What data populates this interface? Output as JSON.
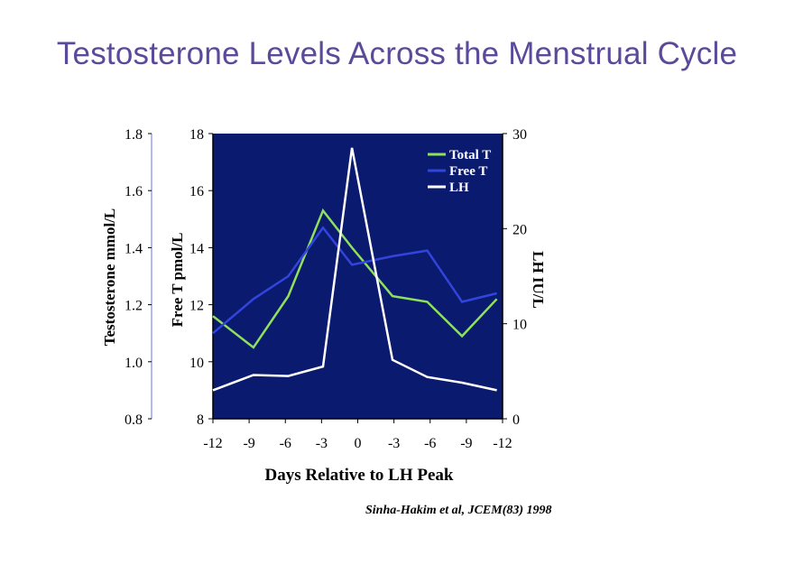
{
  "slide": {
    "title": "Testosterone Levels Across the Menstrual Cycle",
    "citation": "Sinha-Hakim et al, JCEM(83) 1998"
  },
  "chart_data": {
    "type": "line",
    "xlabel": "Days Relative to LH Peak",
    "x_tick_labels": [
      "-12",
      "-9",
      "-6",
      "-3",
      "0",
      "-3",
      "-6",
      "-9",
      "-12"
    ],
    "plot_background": "#0a1a6e",
    "axes": {
      "left_outer": {
        "label": "Testosterone mmol/L",
        "ylim": [
          0.8,
          1.8
        ],
        "ticks": [
          "0.8",
          "1.0",
          "1.2",
          "1.4",
          "1.6",
          "1.8"
        ]
      },
      "left_inner": {
        "label": "Free T pmol/L",
        "ylim": [
          8,
          18
        ],
        "ticks": [
          "8",
          "10",
          "12",
          "14",
          "16",
          "18"
        ]
      },
      "right": {
        "label": "LH IU/L",
        "ylim": [
          0,
          30
        ],
        "ticks": [
          "0",
          "10",
          "20",
          "30"
        ]
      }
    },
    "legend": {
      "position": "top-right",
      "entries": [
        "Total T",
        "Free T",
        "LH"
      ]
    },
    "series": [
      {
        "name": "Total T",
        "axis": "left_outer",
        "color": "#8fe05c",
        "x": [
          -12.5,
          -9,
          -6,
          -3,
          -0.5,
          3,
          6,
          9,
          12
        ],
        "values": [
          1.16,
          1.05,
          1.23,
          1.53,
          1.4,
          1.23,
          1.21,
          1.09,
          1.22
        ]
      },
      {
        "name": "Free T",
        "axis": "left_inner",
        "color": "#3344dd",
        "x": [
          -12.5,
          -9,
          -6,
          -3,
          -0.5,
          3,
          6,
          9,
          12
        ],
        "values": [
          11.0,
          12.2,
          13.0,
          14.7,
          13.4,
          13.7,
          13.9,
          12.1,
          12.4
        ]
      },
      {
        "name": "LH",
        "axis": "right",
        "color": "#ffffff",
        "x": [
          -12.5,
          -9,
          -6,
          -3,
          -0.5,
          3,
          6,
          9,
          12
        ],
        "values": [
          3.0,
          4.6,
          4.5,
          5.5,
          28.5,
          6.2,
          4.4,
          3.8,
          3.0
        ]
      }
    ]
  }
}
